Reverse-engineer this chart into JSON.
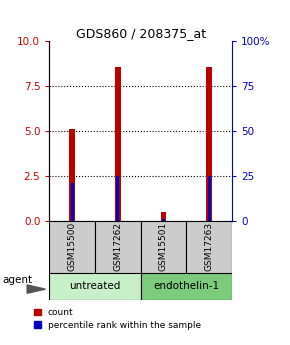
{
  "title": "GDS860 / 208375_at",
  "samples": [
    "GSM15500",
    "GSM17262",
    "GSM15501",
    "GSM17263"
  ],
  "groups": [
    {
      "name": "untreated",
      "color": "#c8f0c8",
      "start": 0,
      "end": 1
    },
    {
      "name": "endothelin-1",
      "color": "#7dcc7d",
      "start": 2,
      "end": 3
    }
  ],
  "red_values": [
    5.1,
    8.6,
    0.5,
    8.6
  ],
  "blue_values": [
    2.1,
    2.5,
    0.1,
    2.5
  ],
  "ylim_left": [
    0,
    10
  ],
  "ylim_right": [
    0,
    100
  ],
  "yticks_left": [
    0,
    2.5,
    5,
    7.5,
    10
  ],
  "yticks_right": [
    0,
    25,
    50,
    75,
    100
  ],
  "red_bar_width": 0.12,
  "blue_bar_width": 0.06,
  "red_color": "#bb0000",
  "blue_color": "#0000bb",
  "sample_box_color": "#cccccc",
  "legend_count": "count",
  "legend_pct": "percentile rank within the sample",
  "agent_label": "agent",
  "left_tick_color": "#cc0000",
  "right_tick_color": "#0000cc"
}
